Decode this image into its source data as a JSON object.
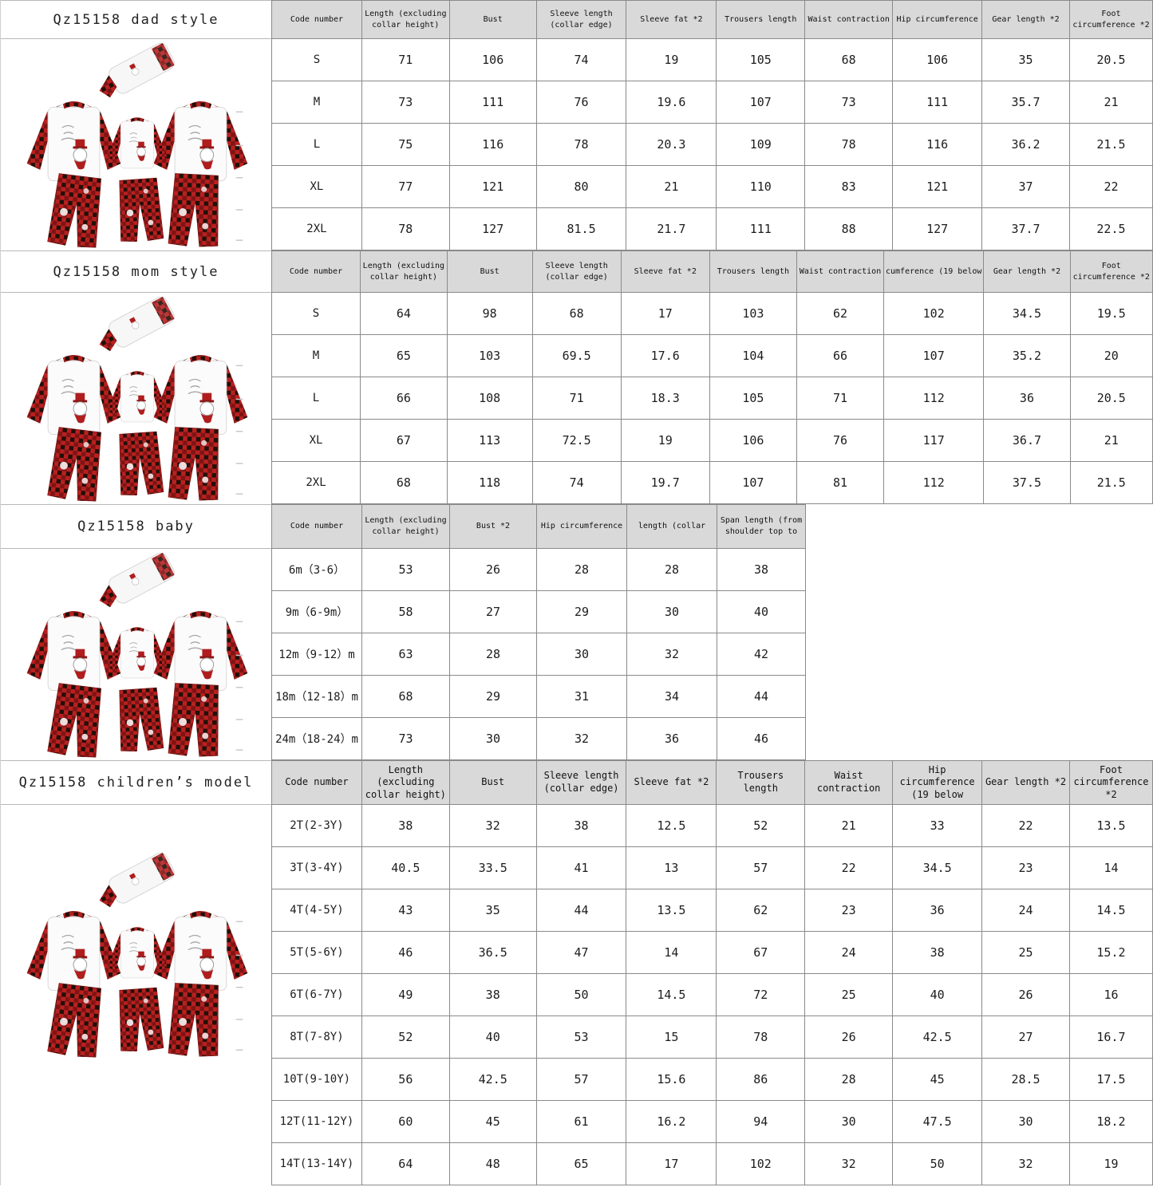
{
  "colors": {
    "header_bg": "#d9d9d9",
    "table_border": "#8a8a8a",
    "plaid_red": "#b92020",
    "plaid_mid": "#7e1414",
    "plaid_dark": "#221008",
    "snowman_red": "#b01d1d"
  },
  "sections": [
    {
      "id": "dad",
      "title": "Qz15158 dad style",
      "headers": [
        "Code number",
        "Length (excluding collar height)",
        "Bust",
        "Sleeve length (collar edge)",
        "Sleeve fat *2",
        "Trousers length",
        "Waist contraction",
        "Hip circumference",
        "Gear length *2",
        "Foot circumference *2"
      ],
      "rows": [
        [
          "S",
          "71",
          "106",
          "74",
          "19",
          "105",
          "68",
          "106",
          "35",
          "20.5"
        ],
        [
          "M",
          "73",
          "111",
          "76",
          "19.6",
          "107",
          "73",
          "111",
          "35.7",
          "21"
        ],
        [
          "L",
          "75",
          "116",
          "78",
          "20.3",
          "109",
          "78",
          "116",
          "36.2",
          "21.5"
        ],
        [
          "XL",
          "77",
          "121",
          "80",
          "21",
          "110",
          "83",
          "121",
          "37",
          "22"
        ],
        [
          "2XL",
          "78",
          "127",
          "81.5",
          "21.7",
          "111",
          "88",
          "127",
          "37.7",
          "22.5"
        ]
      ]
    },
    {
      "id": "mom",
      "title": "Qz15158 mom style",
      "headers": [
        "Code number",
        "Length (excluding collar height)",
        "Bust",
        "Sleeve length (collar edge)",
        "Sleeve fat *2",
        "Trousers length",
        "Waist contraction",
        "cumference (19 below",
        "Gear length *2",
        "Foot circumference *2"
      ],
      "rows": [
        [
          "S",
          "64",
          "98",
          "68",
          "17",
          "103",
          "62",
          "102",
          "34.5",
          "19.5"
        ],
        [
          "M",
          "65",
          "103",
          "69.5",
          "17.6",
          "104",
          "66",
          "107",
          "35.2",
          "20"
        ],
        [
          "L",
          "66",
          "108",
          "71",
          "18.3",
          "105",
          "71",
          "112",
          "36",
          "20.5"
        ],
        [
          "XL",
          "67",
          "113",
          "72.5",
          "19",
          "106",
          "76",
          "117",
          "36.7",
          "21"
        ],
        [
          "2XL",
          "68",
          "118",
          "74",
          "19.7",
          "107",
          "81",
          "112",
          "37.5",
          "21.5"
        ]
      ]
    },
    {
      "id": "baby",
      "title": "Qz15158 baby",
      "headers": [
        "Code number",
        "Length (excluding collar height)",
        "Bust *2",
        "Hip circumference",
        "length (collar",
        "Span length (from shoulder top to"
      ],
      "rows": [
        [
          "6m（3-6）",
          "53",
          "26",
          "28",
          "28",
          "38"
        ],
        [
          "9m（6-9m）",
          "58",
          "27",
          "29",
          "30",
          "40"
        ],
        [
          "12m（9-12）m",
          "63",
          "28",
          "30",
          "32",
          "42"
        ],
        [
          "18m（12-18）m",
          "68",
          "29",
          "31",
          "34",
          "44"
        ],
        [
          "24m（18-24）m",
          "73",
          "30",
          "32",
          "36",
          "46"
        ]
      ]
    },
    {
      "id": "children",
      "title": "Qz15158 children’s model",
      "headers": [
        "Code number",
        "Length (excluding collar height)",
        "Bust",
        "Sleeve length (collar edge)",
        "Sleeve fat *2",
        "Trousers length",
        "Waist contraction",
        "Hip circumference (19 below",
        "Gear length *2",
        "Foot circumference *2"
      ],
      "rows": [
        [
          "2T(2-3Y)",
          "38",
          "32",
          "38",
          "12.5",
          "52",
          "21",
          "33",
          "22",
          "13.5"
        ],
        [
          "3T(3-4Y)",
          "40.5",
          "33.5",
          "41",
          "13",
          "57",
          "22",
          "34.5",
          "23",
          "14"
        ],
        [
          "4T(4-5Y)",
          "43",
          "35",
          "44",
          "13.5",
          "62",
          "23",
          "36",
          "24",
          "14.5"
        ],
        [
          "5T(5-6Y)",
          "46",
          "36.5",
          "47",
          "14",
          "67",
          "24",
          "38",
          "25",
          "15.2"
        ],
        [
          "6T(6-7Y)",
          "49",
          "38",
          "50",
          "14.5",
          "72",
          "25",
          "40",
          "26",
          "16"
        ],
        [
          "8T(7-8Y)",
          "52",
          "40",
          "53",
          "15",
          "78",
          "26",
          "42.5",
          "27",
          "16.7"
        ],
        [
          "10T(9-10Y)",
          "56",
          "42.5",
          "57",
          "15.6",
          "86",
          "28",
          "45",
          "28.5",
          "17.5"
        ],
        [
          "12T(11-12Y)",
          "60",
          "45",
          "61",
          "16.2",
          "94",
          "30",
          "47.5",
          "30",
          "18.2"
        ],
        [
          "14T(13-14Y)",
          "64",
          "48",
          "65",
          "17",
          "102",
          "32",
          "50",
          "32",
          "19"
        ]
      ]
    }
  ]
}
